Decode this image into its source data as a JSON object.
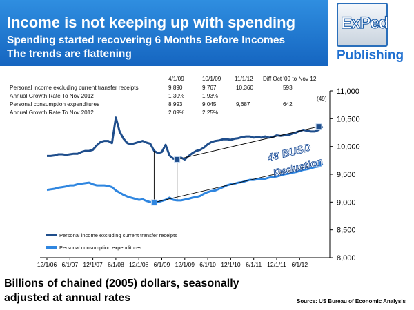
{
  "banner": {
    "title": "Income is not keeping up with spending",
    "subtitle": "Spending started recovering 6 Months Before Incomes",
    "subtitle2": "The trends are flattening"
  },
  "logo": {
    "name": "ExPed",
    "publishing": "Publishing"
  },
  "table": {
    "headers": [
      "4/1/09",
      "10/1/09",
      "11/1/12",
      "Diff Oct '09 to Nov 12"
    ],
    "rows": [
      {
        "label": "Personal income excluding current transfer receipts",
        "cells": [
          "9,890",
          "9,767",
          "10,360",
          "593"
        ]
      },
      {
        "label": "Annual Growth Rate To Nov 2012",
        "cells": [
          "1.30%",
          "1.93%",
          "",
          "(49)"
        ]
      },
      {
        "label": "Personal consumption expenditures",
        "cells": [
          "8,993",
          "9,045",
          "9,687",
          "642"
        ]
      },
      {
        "label": "Annual Growth Rate To Nov 2012",
        "cells": [
          "2.09%",
          "2.25%",
          "",
          ""
        ]
      }
    ]
  },
  "annotation": {
    "line1": "49 BUSD",
    "line2": "Reduction"
  },
  "footer": {
    "line1": "Billions of chained (2005) dollars, seasonally",
    "line2": "adjusted at annual rates",
    "source": "Source: US Bureau of Economic Analysis"
  },
  "colors": {
    "banner": "#1e78d6",
    "income": "#1f4e8c",
    "consumption": "#2f86e0"
  },
  "chart_data": {
    "type": "line",
    "y_axis_side": "right",
    "ylim": [
      8000,
      11000
    ],
    "yticks": [
      "8,000",
      "8,500",
      "9,000",
      "9,500",
      "10,000",
      "10,500",
      "11,000"
    ],
    "xticks": [
      "12/1/06",
      "6/1/07",
      "12/1/07",
      "6/1/08",
      "12/1/08",
      "6/1/09",
      "12/1/09",
      "6/1/10",
      "12/1/10",
      "6/1/11",
      "12/1/11",
      "6/1/12"
    ],
    "legend_position": "lower-left",
    "series": [
      {
        "name": "Personal income excluding current transfer receipts",
        "color": "#1f4e8c",
        "values": [
          9830,
          9830,
          9840,
          9860,
          9860,
          9850,
          9860,
          9870,
          9870,
          9900,
          9920,
          9920,
          9940,
          10020,
          10080,
          10100,
          10100,
          10060,
          10520,
          10270,
          10140,
          10060,
          10040,
          10060,
          10080,
          10100,
          10070,
          10050,
          9920,
          9880,
          9900,
          10030,
          9840,
          9780,
          9790,
          9800,
          9767,
          9830,
          9880,
          9920,
          9940,
          9980,
          10040,
          10080,
          10100,
          10110,
          10130,
          10130,
          10120,
          10140,
          10150,
          10170,
          10180,
          10180,
          10160,
          10170,
          10160,
          10180,
          10160,
          10170,
          10200,
          10190,
          10200,
          10200,
          10230,
          10250,
          10280,
          10300,
          10280,
          10270,
          10270,
          10300,
          10360
        ]
      },
      {
        "name": "Personal consumption expenditures",
        "color": "#2f86e0",
        "values": [
          9220,
          9230,
          9240,
          9260,
          9270,
          9280,
          9300,
          9300,
          9320,
          9330,
          9340,
          9350,
          9320,
          9300,
          9300,
          9300,
          9290,
          9270,
          9210,
          9170,
          9130,
          9100,
          9080,
          9060,
          9040,
          9050,
          9020,
          9000,
          8993,
          9000,
          9020,
          9040,
          9080,
          9040,
          9030,
          9030,
          9045,
          9060,
          9080,
          9090,
          9110,
          9150,
          9180,
          9200,
          9210,
          9240,
          9270,
          9300,
          9320,
          9330,
          9350,
          9360,
          9380,
          9400,
          9400,
          9410,
          9420,
          9420,
          9440,
          9450,
          9460,
          9480,
          9500,
          9510,
          9530,
          9540,
          9560,
          9580,
          9590,
          9610,
          9630,
          9640,
          9687
        ]
      }
    ],
    "markers": [
      {
        "series": 0,
        "date": "10/1/09",
        "value": 9767
      },
      {
        "series": 0,
        "date": "11/1/12",
        "value": 10360
      },
      {
        "series": 1,
        "date": "4/1/09",
        "value": 8993
      },
      {
        "series": 1,
        "date": "11/1/12",
        "value": 9687
      }
    ]
  }
}
